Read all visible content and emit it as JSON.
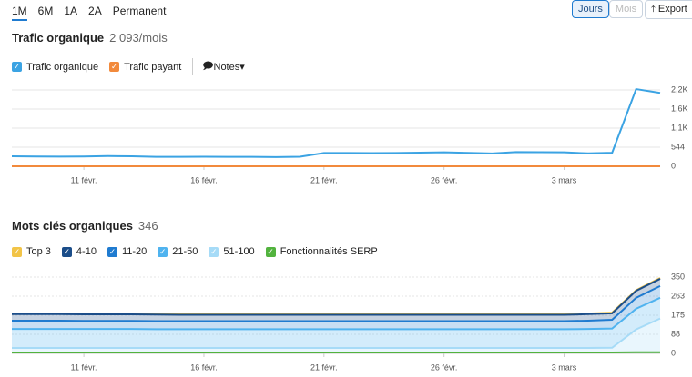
{
  "toolbar": {
    "periods": [
      "1M",
      "6M",
      "1A",
      "2A",
      "Permanent"
    ],
    "granularity": [
      "Jours",
      "Mois"
    ],
    "export": "Export"
  },
  "chart_data": [
    {
      "type": "line",
      "title": "Trafic organique",
      "subtitle": "2 093/mois",
      "notes": "Notes",
      "categories": [
        null,
        null,
        null,
        "11 févr.",
        null,
        null,
        null,
        null,
        "16 févr.",
        null,
        null,
        null,
        null,
        "21 févr.",
        null,
        null,
        null,
        null,
        "26 févr.",
        null,
        null,
        null,
        null,
        "3 mars",
        null,
        null,
        null,
        null
      ],
      "series": [
        {
          "name": "Trafic organique",
          "color": "#3ba3e3",
          "values": [
            285,
            280,
            275,
            280,
            290,
            285,
            270,
            268,
            272,
            270,
            268,
            262,
            272,
            380,
            378,
            375,
            380,
            388,
            398,
            382,
            365,
            405,
            402,
            398,
            368,
            385,
            2200,
            2093
          ]
        },
        {
          "name": "Trafic payant",
          "color": "#f28a3c",
          "values": [
            0,
            0,
            0,
            0,
            0,
            0,
            0,
            0,
            0,
            0,
            0,
            0,
            0,
            0,
            0,
            0,
            0,
            0,
            0,
            0,
            0,
            0,
            0,
            0,
            0,
            0,
            0,
            0
          ]
        }
      ],
      "ylim": [
        0,
        2176
      ],
      "yticks": [
        0,
        544,
        {
          "value": 1088,
          "label": "1,1K"
        },
        {
          "value": 1632,
          "label": "1,6K"
        },
        {
          "value": 2176,
          "label": "2,2K"
        }
      ],
      "grid": true
    },
    {
      "type": "area",
      "stacked": true,
      "title": "Mots clés organiques",
      "subtitle": "346",
      "categories": [
        null,
        null,
        null,
        "11 févr.",
        null,
        null,
        null,
        null,
        "16 févr.",
        null,
        null,
        null,
        null,
        "21 févr.",
        null,
        null,
        null,
        null,
        "26 févr.",
        null,
        null,
        null,
        null,
        "3 mars",
        null,
        null,
        null,
        null
      ],
      "series": [
        {
          "name": "Top 3",
          "color": "#f2c447",
          "values": [
            3,
            3,
            3,
            3,
            3,
            3,
            3,
            3,
            3,
            3,
            3,
            3,
            3,
            3,
            3,
            3,
            3,
            3,
            3,
            3,
            3,
            3,
            3,
            3,
            3,
            3,
            3,
            4
          ]
        },
        {
          "name": "4-10",
          "color": "#1b4d89",
          "values": [
            30,
            30,
            30,
            30,
            30,
            30,
            30,
            29,
            29,
            29,
            29,
            29,
            29,
            29,
            29,
            29,
            29,
            29,
            29,
            29,
            29,
            29,
            29,
            29,
            30,
            30,
            32,
            33
          ]
        },
        {
          "name": "11-20",
          "color": "#1f7bd0",
          "values": [
            38,
            38,
            38,
            37,
            37,
            37,
            37,
            37,
            37,
            37,
            37,
            37,
            37,
            37,
            37,
            37,
            37,
            37,
            37,
            37,
            37,
            37,
            37,
            37,
            38,
            40,
            50,
            54
          ]
        },
        {
          "name": "21-50",
          "color": "#4fb3ef",
          "values": [
            87,
            87,
            87,
            87,
            87,
            87,
            86,
            86,
            86,
            86,
            86,
            86,
            86,
            86,
            86,
            86,
            86,
            86,
            86,
            86,
            86,
            86,
            86,
            86,
            87,
            88,
            95,
            95
          ]
        },
        {
          "name": "51-100",
          "color": "#a6dbf7",
          "values": [
            25,
            25,
            25,
            25,
            25,
            25,
            25,
            25,
            25,
            25,
            25,
            25,
            25,
            25,
            25,
            25,
            25,
            25,
            25,
            25,
            25,
            25,
            25,
            25,
            25,
            26,
            110,
            160
          ]
        },
        {
          "name": "Fonctionnalités SERP",
          "color": "#52b33e",
          "stacked": false,
          "values": [
            4,
            4,
            4,
            4,
            4,
            4,
            4,
            4,
            4,
            4,
            4,
            4,
            4,
            4,
            4,
            4,
            4,
            4,
            4,
            4,
            4,
            4,
            4,
            4,
            4,
            4,
            5,
            5
          ]
        }
      ],
      "ylim": [
        0,
        350
      ],
      "yticks": [
        0,
        {
          "value": 87.5,
          "label": "88"
        },
        175,
        {
          "value": 262.5,
          "label": "263"
        },
        350
      ],
      "grid": true
    }
  ]
}
